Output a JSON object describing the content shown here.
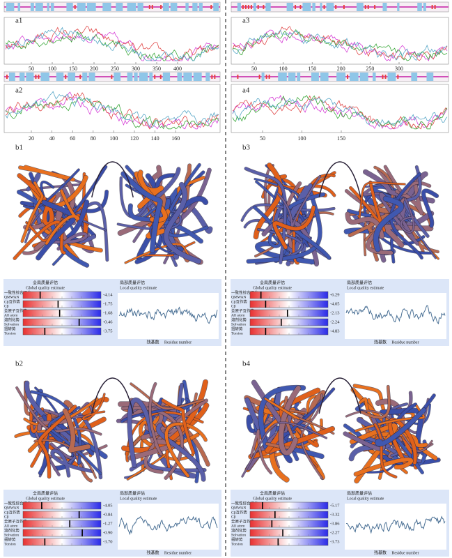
{
  "panels": {
    "a1": {
      "label": "a1",
      "xticks": [
        50,
        100,
        150,
        200,
        250,
        300,
        350,
        400
      ]
    },
    "a2": {
      "label": "a2",
      "xticks": [
        20,
        40,
        60,
        80,
        100,
        120,
        140,
        160
      ]
    },
    "a3": {
      "label": "a3",
      "xticks": [
        50,
        100,
        150,
        200,
        250,
        300
      ]
    },
    "a4": {
      "label": "a4",
      "xticks": [
        50,
        100,
        150
      ]
    }
  },
  "quality": {
    "b1": {
      "label": "b1",
      "scores": [
        "-4.14",
        "-1.75",
        "-1.68",
        "-0.46",
        "-3.75"
      ]
    },
    "b2": {
      "label": "b2",
      "scores": [
        "-4.05",
        "-0.84",
        "-1.27",
        "-0.90",
        "-3.70"
      ]
    },
    "b3": {
      "label": "b3",
      "scores": [
        "-6.29",
        "-4.05",
        "-2.13",
        "-2.24",
        "-4.83"
      ]
    },
    "b4": {
      "label": "b4",
      "scores": [
        "-5.17",
        "-3.32",
        "-3.86",
        "-2.27",
        "-3.73"
      ]
    }
  },
  "legend_text": {
    "global_cn": "全局质量评估",
    "global_en": "Global quality estimate",
    "local_cn": "局部质量评估",
    "local_en": "Local quality estimate",
    "rows": [
      {
        "cn": "一致性综合评分",
        "en": "QMWAN"
      },
      {
        "cn": "Cβ互作势",
        "en": "Cβ"
      },
      {
        "cn": "全原子互作势",
        "en": "All atom"
      },
      {
        "cn": "溶剂化势",
        "en": "Solvation"
      },
      {
        "cn": "扭转势",
        "en": "Torsion"
      }
    ],
    "residue_cn": "残基数",
    "residue_en": "Residue number"
  }
}
